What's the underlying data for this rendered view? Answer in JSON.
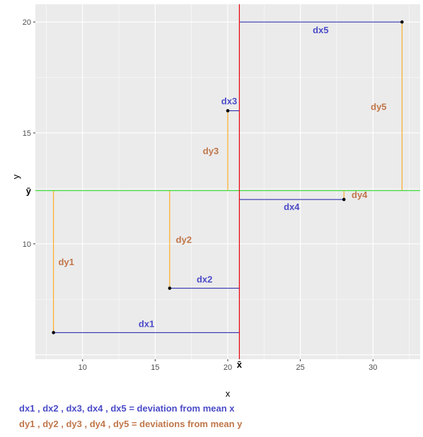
{
  "chart_data": {
    "type": "scatter",
    "title": "",
    "xlabel": "x",
    "ylabel": "y",
    "xlim": [
      6.75,
      33.25
    ],
    "ylim": [
      4.8,
      20.8
    ],
    "xticks": [
      10,
      15,
      20,
      25,
      30
    ],
    "yticks": [
      10,
      15,
      20
    ],
    "grid": true,
    "background": "#ebebeb",
    "points": [
      {
        "x": 8,
        "y": 6
      },
      {
        "x": 16,
        "y": 8
      },
      {
        "x": 20,
        "y": 16
      },
      {
        "x": 28,
        "y": 12
      },
      {
        "x": 32,
        "y": 20
      }
    ],
    "mean_x": 20.8,
    "mean_y": 12.4,
    "mean_x_label": "x̄",
    "mean_y_label": "ȳ",
    "mean_x_color": "#e8000b",
    "mean_y_color": "#33dd33",
    "dx_color": "#1a1aa8",
    "dy_color": "#ffa000",
    "dx_labels": [
      "dx1",
      "dx2",
      "dx3",
      "dx4",
      "dx5"
    ],
    "dy_labels": [
      "dy1",
      "dy2",
      "dy3",
      "dy4",
      "dy5"
    ],
    "dx_label_color": "#4b4bc8",
    "dy_label_color": "#c0764a"
  },
  "caption": {
    "line1": "dx1 , dx2 , dx3, dx4 , dx5 = deviation from mean x",
    "line2": "dy1 , dy2 , dy3 , dy4 , dy5 = deviations from mean y",
    "line1_color": "#4b4bc8",
    "line2_color": "#c0764a"
  }
}
